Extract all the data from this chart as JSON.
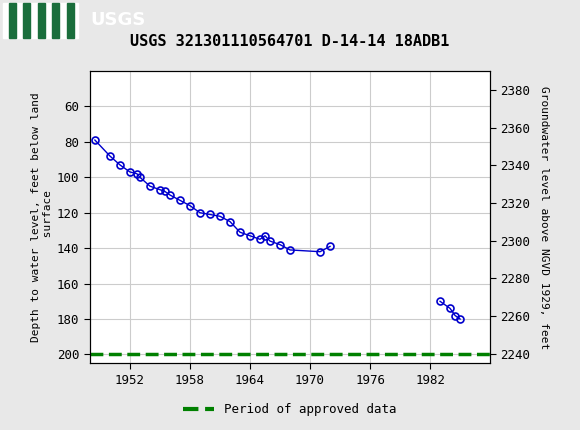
{
  "title": "USGS 321301110564701 D-14-14 18ADB1",
  "ylabel_left": "Depth to water level, feet below land\n surface",
  "ylabel_right": "Groundwater level above NGVD 1929, feet",
  "header_color": "#1a6e3c",
  "plot_bg": "#ffffff",
  "fig_bg": "#e8e8e8",
  "ylim_left": [
    205,
    40
  ],
  "ylim_right": [
    2235,
    2390
  ],
  "xlim": [
    1948.0,
    1988.0
  ],
  "xticks": [
    1952,
    1958,
    1964,
    1970,
    1976,
    1982
  ],
  "yticks_left": [
    60,
    80,
    100,
    120,
    140,
    160,
    180,
    200
  ],
  "yticks_right": [
    2240,
    2260,
    2280,
    2300,
    2320,
    2340,
    2360,
    2380
  ],
  "segments": [
    {
      "x": [
        1948.5,
        1950,
        1951,
        1952,
        1952.7,
        1953,
        1954,
        1955,
        1955.5,
        1956,
        1957,
        1958,
        1959,
        1960,
        1961,
        1962,
        1963,
        1964,
        1965,
        1965.5,
        1966,
        1967,
        1968,
        1971,
        1972
      ],
      "y": [
        79,
        88,
        93,
        97,
        98,
        100,
        105,
        107,
        108,
        110,
        113,
        116,
        120,
        121,
        122,
        125,
        131,
        133,
        135,
        133,
        136,
        138,
        141,
        142,
        139
      ]
    },
    {
      "x": [
        1983,
        1984,
        1984.5,
        1985
      ],
      "y": [
        170,
        174,
        178,
        180
      ]
    }
  ],
  "line_color": "#0000cc",
  "marker_color": "#0000cc",
  "marker_size": 5,
  "line_width": 1.0,
  "legend_label": "Period of approved data",
  "legend_color": "#008000",
  "grid_color": "#cccccc"
}
